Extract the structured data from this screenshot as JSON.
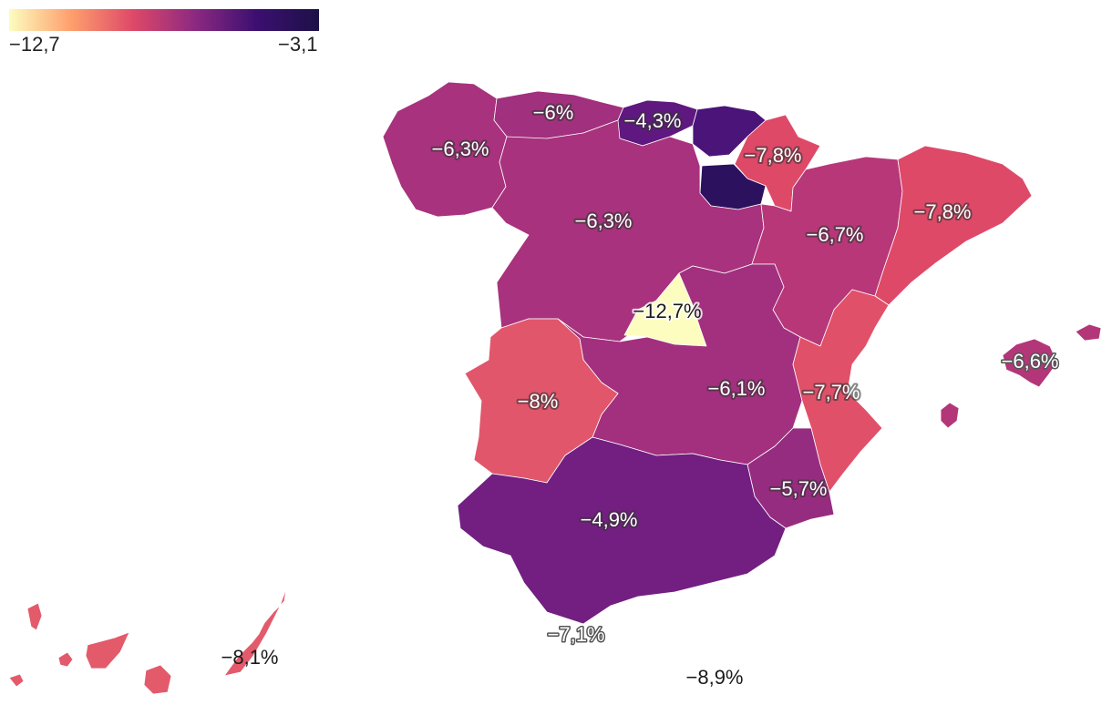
{
  "legend": {
    "min_label": "−12,7",
    "max_label": "−3,1",
    "min_value": -12.7,
    "max_value": -3.1,
    "palette": [
      "#fcfdbf",
      "#fe9f6d",
      "#de4968",
      "#8c2981",
      "#3b0f70",
      "#1d1147"
    ]
  },
  "regions": [
    {
      "id": "galicia",
      "label": "−6,3%",
      "value": -6.3,
      "color": "#a8327d"
    },
    {
      "id": "asturias",
      "label": "−6%",
      "value": -6.0,
      "color": "#a1307e"
    },
    {
      "id": "cantabria",
      "label": "−4,3%",
      "value": -4.3,
      "color": "#5f187f"
    },
    {
      "id": "pais-vasco",
      "label": "",
      "value": null,
      "color": "#4a1479"
    },
    {
      "id": "navarra",
      "label": "−7,8%",
      "value": -7.8,
      "color": "#de4968"
    },
    {
      "id": "la-rioja",
      "label": "",
      "value": null,
      "color": "#2c115f"
    },
    {
      "id": "castilla-leon",
      "label": "−6,3%",
      "value": -6.3,
      "color": "#a8327d"
    },
    {
      "id": "aragon",
      "label": "−6,7%",
      "value": -6.7,
      "color": "#b73779"
    },
    {
      "id": "cataluna",
      "label": "−7,8%",
      "value": -7.8,
      "color": "#de4968"
    },
    {
      "id": "madrid",
      "label": "−12,7%",
      "value": -12.7,
      "color": "#fcfdbf"
    },
    {
      "id": "castilla-la-mancha",
      "label": "−6,1%",
      "value": -6.1,
      "color": "#a2307e"
    },
    {
      "id": "extremadura",
      "label": "−8%",
      "value": -8.0,
      "color": "#e1566b"
    },
    {
      "id": "valencia",
      "label": "−7,7%",
      "value": -7.7,
      "color": "#e05068"
    },
    {
      "id": "murcia",
      "label": "−5,7%",
      "value": -5.7,
      "color": "#962c80"
    },
    {
      "id": "andalucia",
      "label": "−4,9%",
      "value": -4.9,
      "color": "#721f81"
    },
    {
      "id": "baleares",
      "label": "−6,6%",
      "value": -6.6,
      "color": "#b33679"
    },
    {
      "id": "canarias",
      "label": "−8,1%",
      "value": -8.1,
      "color": "#e35a6b"
    },
    {
      "id": "ceuta",
      "label": "−7,1%",
      "value": -7.1,
      "color": "#c73d73"
    },
    {
      "id": "melilla",
      "label": "−8,9%",
      "value": -8.9,
      "color": "#ec6a6e"
    }
  ]
}
